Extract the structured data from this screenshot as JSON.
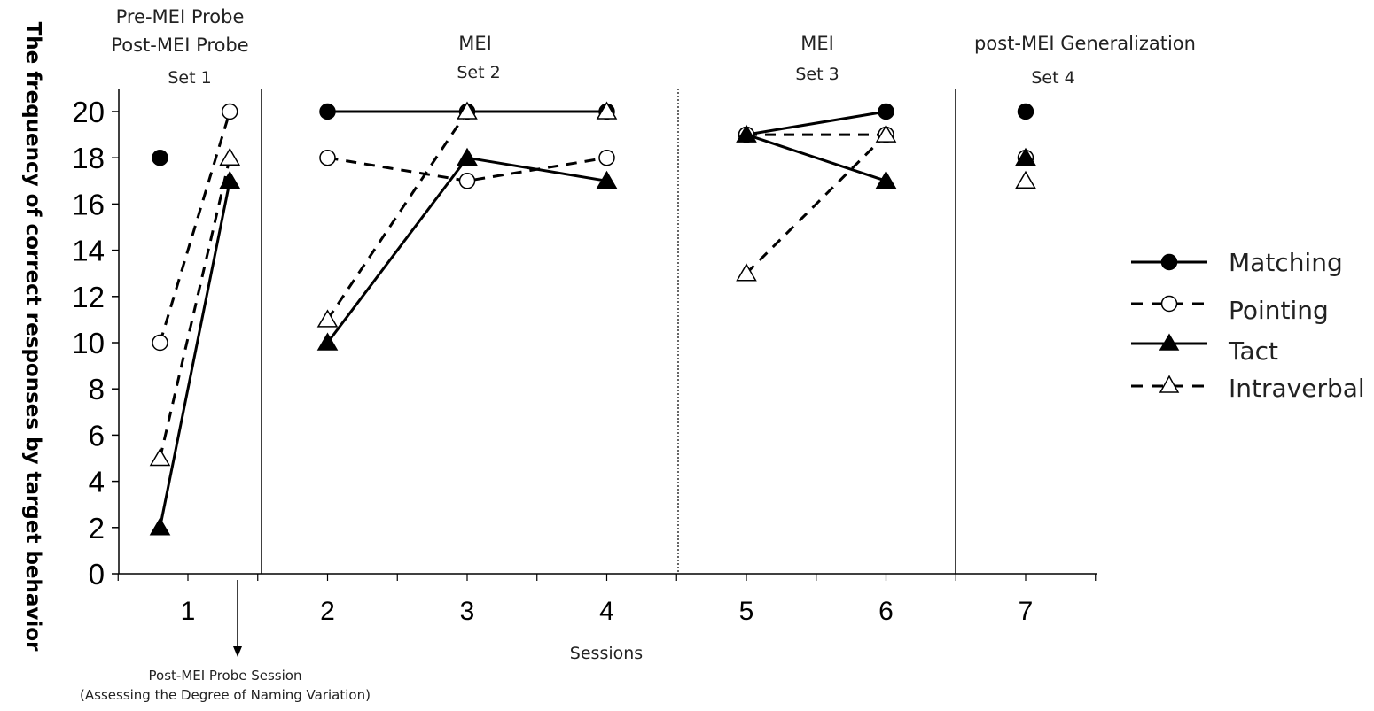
{
  "chart_data": {
    "type": "line",
    "ylabel": "The frequency of correct responses by target behavior",
    "xlabel": "Sessions",
    "x": [
      1,
      2,
      3,
      4,
      5,
      6,
      7
    ],
    "x_ticks": [
      "1",
      "2",
      "3",
      "4",
      "5",
      "6",
      "7"
    ],
    "ylim": [
      0,
      20
    ],
    "y_ticks": [
      "0",
      "2",
      "4",
      "6",
      "8",
      "10",
      "12",
      "14",
      "16",
      "18",
      "20"
    ],
    "grid": false,
    "legend_position": "right",
    "phase_labels": {
      "p1_line1": "Pre-MEI Probe",
      "p1_line2": "Post-MEI Probe",
      "p1_set": "Set 1",
      "p2_line1": "MEI",
      "p2_set": "Set 2",
      "p3_line1": "MEI",
      "p3_set": "Set 3",
      "p4_line1": "post-MEI Generalization",
      "p4_set": "Set 4"
    },
    "annotation": {
      "line1": "Post-MEI Probe Session",
      "line2": "(Assessing the Degree of Naming Variation)"
    },
    "series": [
      {
        "name": "Matching",
        "marker": "circle-filled",
        "line": "solid",
        "points": [
          {
            "x": 0.8,
            "y": 18
          },
          {
            "x": 2,
            "y": 20
          },
          {
            "x": 3,
            "y": 20
          },
          {
            "x": 4,
            "y": 20
          },
          {
            "x": 5,
            "y": 19
          },
          {
            "x": 6,
            "y": 20
          },
          {
            "x": 7,
            "y": 20
          }
        ],
        "segments": [
          [
            1,
            2,
            3
          ],
          [
            4,
            5
          ]
        ]
      },
      {
        "name": "Pointing",
        "marker": "circle-open",
        "line": "dashed",
        "points": [
          {
            "x": 0.8,
            "y": 10
          },
          {
            "x": 1.3,
            "y": 20
          },
          {
            "x": 2,
            "y": 18
          },
          {
            "x": 3,
            "y": 17
          },
          {
            "x": 4,
            "y": 18
          },
          {
            "x": 5,
            "y": 19
          },
          {
            "x": 6,
            "y": 19
          },
          {
            "x": 7,
            "y": 18
          }
        ],
        "segments": [
          [
            0,
            1
          ],
          [
            2,
            3,
            4
          ],
          [
            5,
            6
          ]
        ]
      },
      {
        "name": "Tact",
        "marker": "triangle-filled",
        "line": "solid",
        "points": [
          {
            "x": 0.8,
            "y": 2
          },
          {
            "x": 1.3,
            "y": 17
          },
          {
            "x": 2,
            "y": 10
          },
          {
            "x": 3,
            "y": 18
          },
          {
            "x": 4,
            "y": 17
          },
          {
            "x": 5,
            "y": 19
          },
          {
            "x": 6,
            "y": 17
          },
          {
            "x": 7,
            "y": 18
          }
        ],
        "segments": [
          [
            0,
            1
          ],
          [
            2,
            3,
            4
          ],
          [
            5,
            6
          ]
        ]
      },
      {
        "name": "Intraverbal",
        "marker": "triangle-open",
        "line": "dashed",
        "points": [
          {
            "x": 0.8,
            "y": 5
          },
          {
            "x": 1.3,
            "y": 18
          },
          {
            "x": 2,
            "y": 11
          },
          {
            "x": 3,
            "y": 20
          },
          {
            "x": 4,
            "y": 20
          },
          {
            "x": 5,
            "y": 13
          },
          {
            "x": 6,
            "y": 19
          },
          {
            "x": 7,
            "y": 17
          }
        ],
        "segments": [
          [
            0,
            1
          ],
          [
            2,
            3,
            4
          ],
          [
            5,
            6
          ]
        ]
      }
    ]
  }
}
